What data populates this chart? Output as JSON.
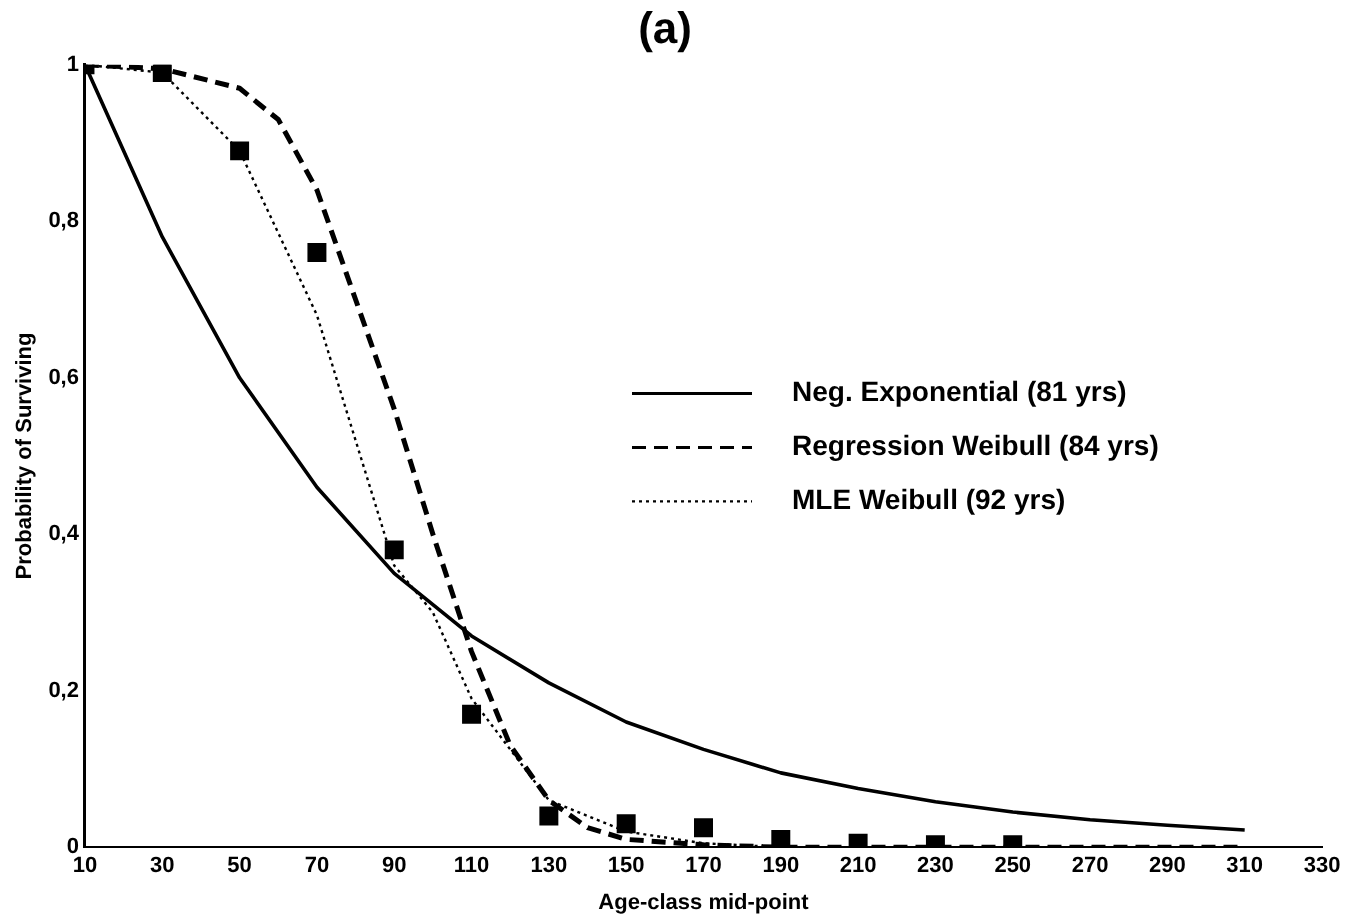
{
  "chart_data": {
    "type": "line",
    "title": "(a)",
    "xlabel": "Age-class mid-point",
    "ylabel": "Probability of Surviving",
    "xlim": [
      10,
      330
    ],
    "xticks": [
      10,
      30,
      50,
      70,
      90,
      110,
      130,
      150,
      170,
      190,
      210,
      230,
      250,
      270,
      290,
      310,
      330
    ],
    "ylim": [
      0,
      1
    ],
    "yticks": [
      0,
      {
        "value": 0.2,
        "label": "0,2"
      },
      {
        "value": 0.4,
        "label": "0,4"
      },
      {
        "value": 0.6,
        "label": "0,6"
      },
      {
        "value": 0.8,
        "label": "0,8"
      },
      1
    ],
    "grid": false,
    "legend": "right",
    "series": [
      {
        "name": "Neg. Exponential (81 yrs)",
        "color": "#000000",
        "line_style": "solid",
        "marker": "none",
        "x": [
          10,
          30,
          50,
          70,
          90,
          110,
          130,
          150,
          170,
          190,
          210,
          230,
          250,
          270,
          290,
          310
        ],
        "values": [
          1,
          0.78,
          0.6,
          0.46,
          0.35,
          0.27,
          0.21,
          0.16,
          0.125,
          0.095,
          0.075,
          0.058,
          0.045,
          0.035,
          0.028,
          0.022
        ]
      },
      {
        "name": "Regression Weibull (84 yrs)",
        "color": "#000000",
        "line_style": "dashed",
        "marker": "none",
        "x": [
          10,
          30,
          50,
          60,
          70,
          80,
          90,
          100,
          110,
          120,
          130,
          140,
          150,
          170,
          190,
          210,
          230,
          250,
          270,
          290,
          310
        ],
        "values": [
          1,
          0.995,
          0.97,
          0.93,
          0.84,
          0.7,
          0.56,
          0.4,
          0.25,
          0.13,
          0.06,
          0.025,
          0.01,
          0.003,
          0,
          0,
          0,
          0,
          0,
          0,
          0
        ]
      },
      {
        "name": "MLE Weibull (92 yrs)",
        "color": "#000000",
        "line_style": "dotted",
        "marker": "none",
        "x": [
          10,
          30,
          50,
          70,
          90,
          100,
          110,
          130,
          150,
          170,
          190,
          210,
          230,
          250,
          270,
          290,
          310,
          330
        ],
        "values": [
          1,
          0.99,
          0.89,
          0.68,
          0.36,
          0.3,
          0.19,
          0.06,
          0.02,
          0.005,
          0,
          0,
          0,
          0,
          0,
          0,
          0,
          0
        ]
      },
      {
        "type": "scatter",
        "color": "#000000",
        "marker": "square",
        "x": [
          10,
          30,
          50,
          70,
          90,
          110,
          130,
          150,
          170,
          190,
          210,
          230,
          250
        ],
        "values": [
          1,
          0.99,
          0.89,
          0.76,
          0.38,
          0.17,
          0.04,
          0.03,
          0.025,
          0.01,
          0.005,
          0.003,
          0.003
        ]
      }
    ]
  }
}
